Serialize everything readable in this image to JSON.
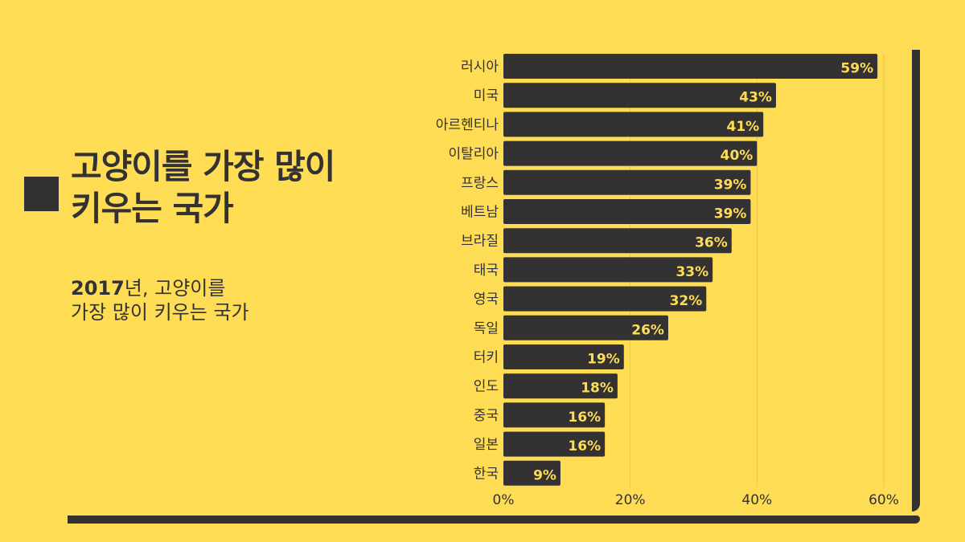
{
  "title": "고양이를 가장 많이\n키우는 국가",
  "subtitle": {
    "year": "2017",
    "rest_line1": "년, 고양이를",
    "line2": "가장 많이 키우는 국가"
  },
  "colors": {
    "background": "#fedd55",
    "bar": "#333132",
    "bar_label": "#fedd55",
    "text": "#333132"
  },
  "chart_data": {
    "type": "bar",
    "orientation": "horizontal",
    "categories": [
      "러시아",
      "미국",
      "아르헨티나",
      "이탈리아",
      "프랑스",
      "베트남",
      "브라질",
      "태국",
      "영국",
      "독일",
      "터키",
      "인도",
      "중국",
      "일본",
      "한국"
    ],
    "values": [
      59,
      43,
      41,
      40,
      39,
      39,
      36,
      33,
      32,
      26,
      19,
      18,
      16,
      16,
      9
    ],
    "value_labels": [
      "59%",
      "43%",
      "41%",
      "40%",
      "39%",
      "39%",
      "36%",
      "33%",
      "32%",
      "26%",
      "19%",
      "18%",
      "16%",
      "16%",
      "9%"
    ],
    "x_ticks": [
      0,
      20,
      40,
      60
    ],
    "x_tick_labels": [
      "0%",
      "20%",
      "40%",
      "60%"
    ],
    "xlim": [
      0,
      60
    ],
    "grid": "vertical"
  }
}
